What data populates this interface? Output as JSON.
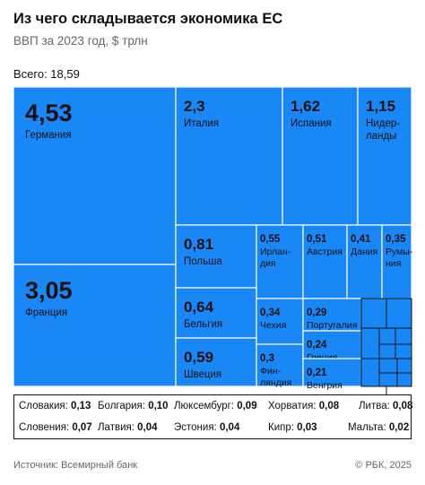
{
  "title": "Из чего складывается экономика ЕС",
  "subtitle": "ВВП за 2023 год, $ трлн",
  "total_label": "Всего: 18,59",
  "source": "Источник: Всемирный банк",
  "copyright": "© РБК, 2025",
  "colors": {
    "tile": "#1a87f7",
    "text": "#111111",
    "muted": "#666666"
  },
  "chart_data": {
    "type": "treemap",
    "title": "Из чего складывается экономика ЕС",
    "subtitle": "ВВП за 2023 год, $ трлн",
    "total": 18.59,
    "unit": "$ трлн",
    "tiles": [
      {
        "name": "Германия",
        "value": 4.53,
        "label": "4,53"
      },
      {
        "name": "Франция",
        "value": 3.05,
        "label": "3,05"
      },
      {
        "name": "Италия",
        "value": 2.3,
        "label": "2,3"
      },
      {
        "name": "Испания",
        "value": 1.62,
        "label": "1,62"
      },
      {
        "name": "Нидер-ланды",
        "value": 1.15,
        "label": "1,15"
      },
      {
        "name": "Польша",
        "value": 0.81,
        "label": "0,81"
      },
      {
        "name": "Ирлан-дия",
        "value": 0.55,
        "label": "0,55"
      },
      {
        "name": "Австрия",
        "value": 0.51,
        "label": "0,51"
      },
      {
        "name": "Дания",
        "value": 0.41,
        "label": "0,41"
      },
      {
        "name": "Румы-ния",
        "value": 0.35,
        "label": "0,35"
      },
      {
        "name": "Бельгия",
        "value": 0.64,
        "label": "0,64"
      },
      {
        "name": "Швеция",
        "value": 0.59,
        "label": "0,59"
      },
      {
        "name": "Чехия",
        "value": 0.34,
        "label": "0,34"
      },
      {
        "name": "Фин-ляндия",
        "value": 0.3,
        "label": "0,3"
      },
      {
        "name": "Португалия",
        "value": 0.29,
        "label": "0,29"
      },
      {
        "name": "Греция",
        "value": 0.24,
        "label": "0,24"
      },
      {
        "name": "Венгрия",
        "value": 0.21,
        "label": "0,21"
      }
    ],
    "small_countries": [
      {
        "name": "Словакия",
        "value": 0.13,
        "label": "0,13"
      },
      {
        "name": "Болгария",
        "value": 0.1,
        "label": "0,10"
      },
      {
        "name": "Люксембург",
        "value": 0.09,
        "label": "0,09"
      },
      {
        "name": "Хорватия",
        "value": 0.08,
        "label": "0,08"
      },
      {
        "name": "Литва",
        "value": 0.08,
        "label": "0,08"
      },
      {
        "name": "Словения",
        "value": 0.07,
        "label": "0,07"
      },
      {
        "name": "Латвия",
        "value": 0.04,
        "label": "0,04"
      },
      {
        "name": "Эстония",
        "value": 0.04,
        "label": "0,04"
      },
      {
        "name": "Кипр",
        "value": 0.03,
        "label": "0,03"
      },
      {
        "name": "Мальта",
        "value": 0.02,
        "label": "0,02"
      }
    ]
  }
}
